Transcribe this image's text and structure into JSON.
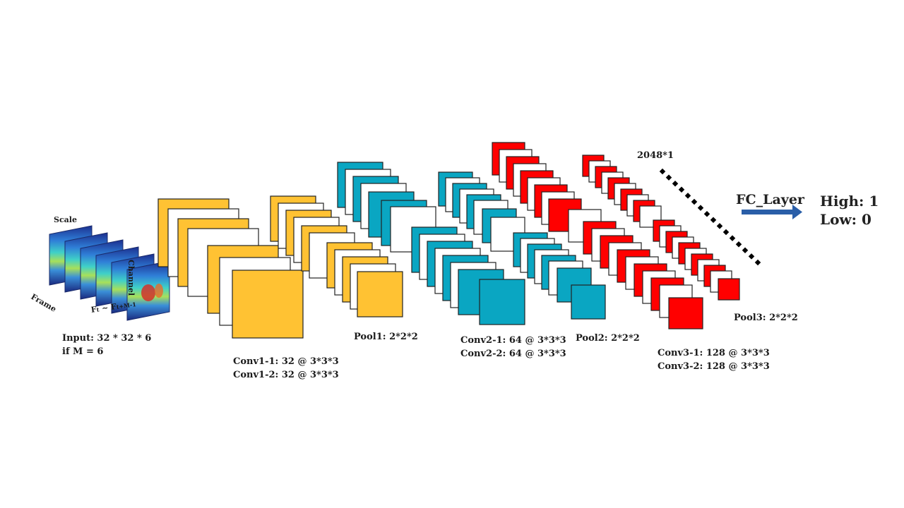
{
  "colors": {
    "conv1": "#ffc233",
    "conv2": "#0aa6c2",
    "conv3": "#ff0000",
    "blank": "#ffffff",
    "outline": "#222222",
    "arrow": "#2a5ea8",
    "dots": "#000000"
  },
  "input": {
    "axis_scale": "Scale",
    "axis_frame": "Frame",
    "axis_channel": "Channel",
    "axis_ft_main": "F",
    "axis_ft_sub1": "t",
    "axis_ft_mid": " ~ F",
    "axis_ft_sub2": "t+M-1",
    "label_line1": "Input: 32 * 32 * 6",
    "label_line2": "if M = 6"
  },
  "conv1": {
    "line1": "Conv1-1: 32 @ 3*3*3",
    "line2": "Conv1-2: 32 @ 3*3*3"
  },
  "pool1": {
    "label": "Pool1: 2*2*2"
  },
  "conv2": {
    "line1": "Conv2-1: 64 @ 3*3*3",
    "line2": "Conv2-2: 64 @ 3*3*3"
  },
  "pool2": {
    "label": "Pool2: 2*2*2"
  },
  "conv3": {
    "line1": "Conv3-1: 128 @ 3*3*3",
    "line2": "Conv3-2: 128 @ 3*3*3"
  },
  "pool3": {
    "label": "Pool3: 2*2*2"
  },
  "fc": {
    "dim_label": "2048*1",
    "layer_label": "FC_Layer"
  },
  "output": {
    "high": "High: 1",
    "low": "Low:  0"
  }
}
